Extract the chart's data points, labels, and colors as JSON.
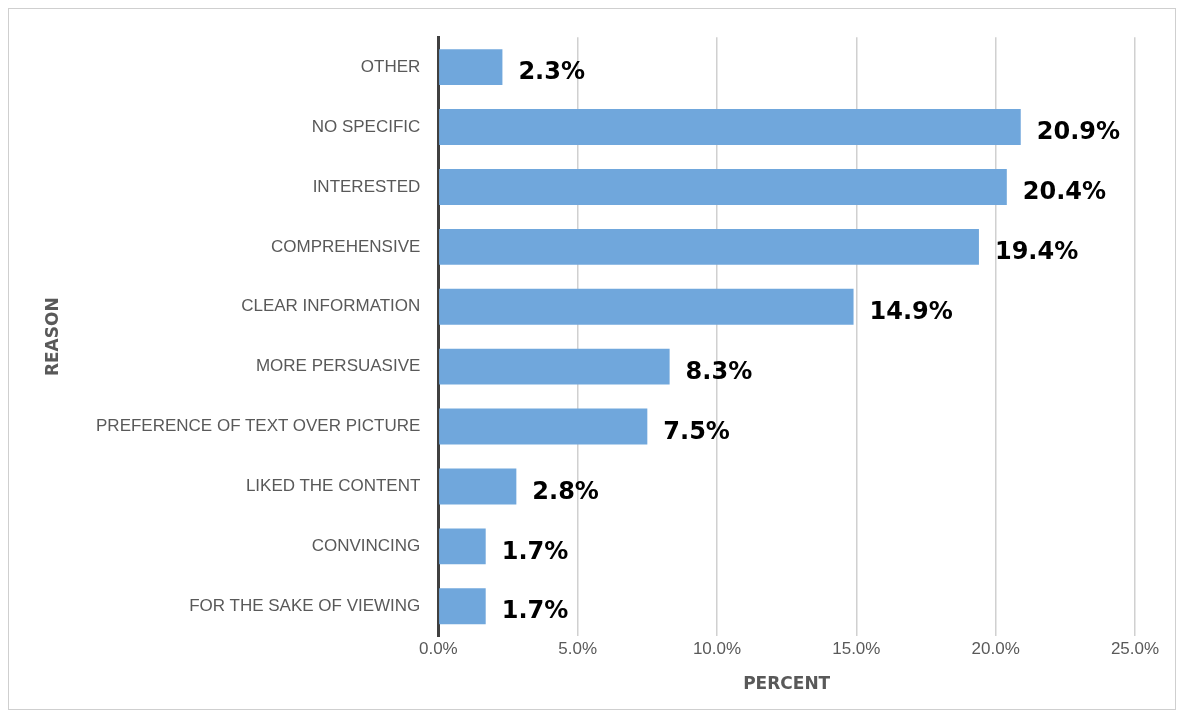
{
  "chart_data": {
    "type": "bar",
    "orientation": "horizontal",
    "xlabel": "PERCENT",
    "ylabel": "REASON",
    "categories": [
      "OTHER",
      "NO SPECIFIC",
      "INTERESTED",
      "COMPREHENSIVE",
      "CLEAR INFORMATION",
      "MORE PERSUASIVE",
      "PREFERENCE OF TEXT OVER PICTURE",
      "LIKED THE CONTENT",
      "CONVINCING",
      "FOR THE SAKE OF VIEWING"
    ],
    "values": [
      2.3,
      20.9,
      20.4,
      19.4,
      14.9,
      8.3,
      7.5,
      2.8,
      1.7,
      1.7
    ],
    "value_labels": [
      "2.3%",
      "20.9%",
      "20.4%",
      "19.4%",
      "14.9%",
      "8.3%",
      "7.5%",
      "2.8%",
      "1.7%",
      "1.7%"
    ],
    "color": "#70a7dc",
    "xlim": [
      0,
      25
    ],
    "xticks": [
      {
        "value": 0,
        "label": "0.0%"
      },
      {
        "value": 5,
        "label": "5.0%"
      },
      {
        "value": 10,
        "label": "10.0%"
      },
      {
        "value": 15,
        "label": "15.0%"
      },
      {
        "value": 20,
        "label": "20.0%"
      },
      {
        "value": 25,
        "label": "25.0%"
      }
    ],
    "grid": "x",
    "legend": false
  }
}
